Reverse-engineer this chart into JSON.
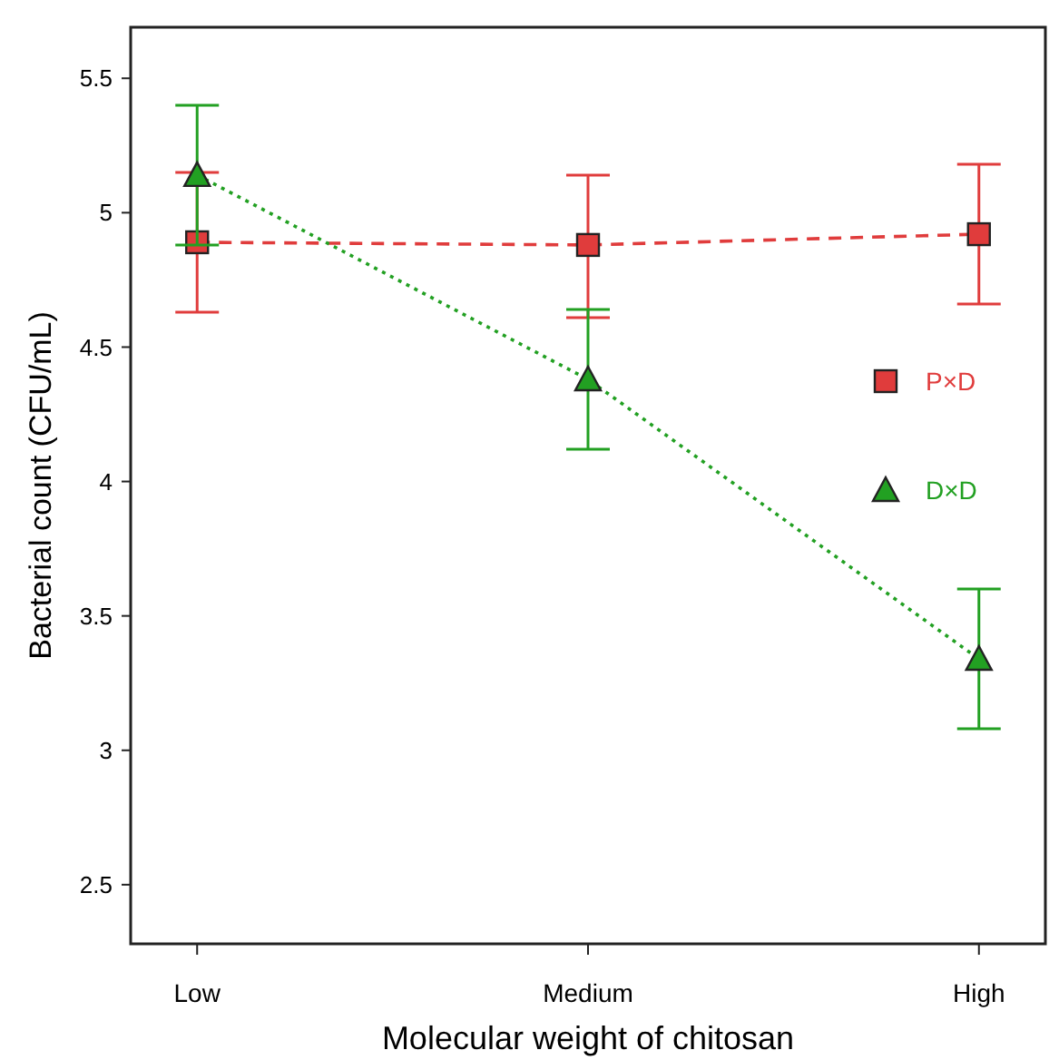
{
  "chart_data": {
    "type": "line",
    "xlabel": "Molecular weight of chitosan",
    "ylabel": "Bacterial count (CFU/mL)",
    "categories": [
      "Low",
      "Medium",
      "High"
    ],
    "series": [
      {
        "name": "P×D",
        "color": "#e03c3c",
        "marker": "square",
        "line_style": "dashed",
        "values": [
          4.89,
          4.88,
          4.92
        ],
        "errors": [
          [
            4.63,
            5.15
          ],
          [
            4.61,
            5.14
          ],
          [
            4.66,
            5.18
          ]
        ]
      },
      {
        "name": "D×D",
        "color": "#22a022",
        "marker": "triangle",
        "line_style": "dotted",
        "values": [
          5.14,
          4.38,
          3.34
        ],
        "errors": [
          [
            4.88,
            5.4
          ],
          [
            4.12,
            4.64
          ],
          [
            3.08,
            3.6
          ]
        ]
      }
    ],
    "ylim": [
      2.28,
      5.69
    ],
    "yticks": [
      2.5,
      3,
      3.5,
      4,
      4.5,
      5,
      5.5
    ],
    "grid": false,
    "legend": "right"
  }
}
